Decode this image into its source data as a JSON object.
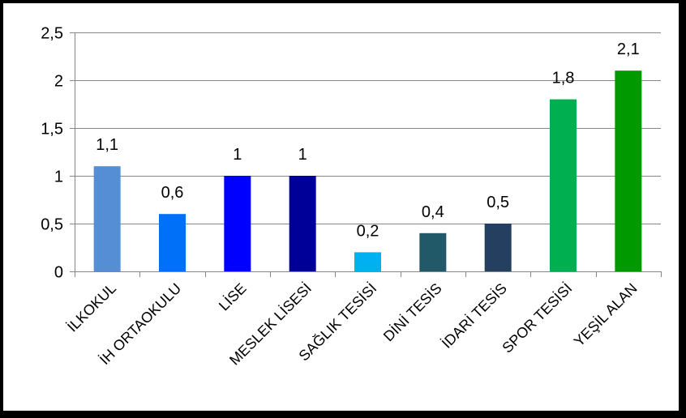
{
  "chart_data": {
    "type": "bar",
    "title": "",
    "xlabel": "",
    "ylabel": "",
    "categories": [
      "İLKOKUL",
      "İH ORTAOKULU",
      "LİSE",
      "MESLEK LİSESİ",
      "SAĞLIK TESİSİ",
      "DİNİ TESİS",
      "İDARİ TESİS",
      "SPOR TESİSİ",
      "YEŞİL ALAN"
    ],
    "values": [
      1.1,
      0.6,
      1,
      1,
      0.2,
      0.4,
      0.5,
      1.8,
      2.1
    ],
    "value_labels": [
      "1,1",
      "0,6",
      "1",
      "1",
      "0,2",
      "0,4",
      "0,5",
      "1,8",
      "2,1"
    ],
    "colors": [
      "#558ed5",
      "#0070f8",
      "#0000ff",
      "#000099",
      "#00b0f0",
      "#215968",
      "#243f60",
      "#00b050",
      "#009900"
    ],
    "ylim": [
      0,
      2.5
    ],
    "yticks": [
      0,
      0.5,
      1,
      1.5,
      2,
      2.5
    ],
    "ytick_labels": [
      "0",
      "0,5",
      "1",
      "1,5",
      "2",
      "2,5"
    ],
    "grid": true,
    "legend": "none"
  }
}
